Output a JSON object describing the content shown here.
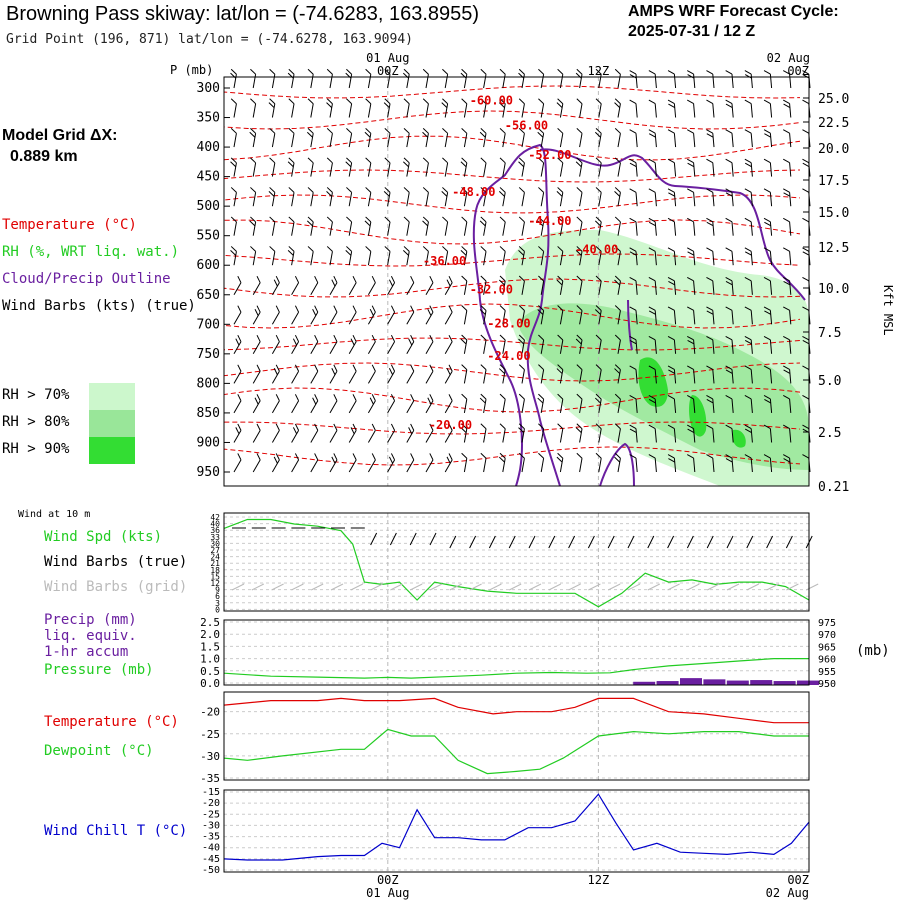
{
  "header": {
    "title": "Browning Pass skiway:  lat/lon = (-74.6283, 163.8955)",
    "subtitle": "Grid Point (196, 871) lat/lon = (-74.6278, 163.9094)",
    "cycle_line1": "AMPS WRF Forecast Cycle:",
    "cycle_line2": "2025-07-31 / 12  Z"
  },
  "model_grid": {
    "line1": "Model Grid ΔX:",
    "line2": "0.889 km"
  },
  "legend": {
    "temperature": "Temperature (°C)",
    "rh": "RH (%, WRT liq. wat.)",
    "cloud": "Cloud/Precip Outline",
    "wind": "Wind Barbs (kts) (true)",
    "rh70": "RH > 70%",
    "rh80": "RH > 80%",
    "rh90": "RH > 90%"
  },
  "colors": {
    "temperature": "#e00000",
    "rh": "#22cc22",
    "cloud": "#6a1fa0",
    "wind": "#000000",
    "wind_grid": "#bbbbbb",
    "windchill": "#0000cc",
    "rh70": "#ccf7cc",
    "rh80": "#99e699",
    "rh90": "#33dd33"
  },
  "time_axis": {
    "top_dates": [
      "01 Aug",
      "",
      "02 Aug"
    ],
    "labels": [
      "00Z",
      "12Z",
      "00Z"
    ],
    "bottom_dates": [
      "01 Aug",
      "",
      "02 Aug"
    ]
  },
  "panel_labels": {
    "wind10m": "Wind at 10 m",
    "wind_spd": "Wind Spd (kts)",
    "wind_barbs_true": "Wind Barbs (true)",
    "wind_barbs_grid": "Wind Barbs (grid)",
    "precip1": "Precip (mm)",
    "precip2": "liq. equiv.",
    "precip3": "1-hr accum",
    "pressure": "Pressure (mb)",
    "pressure_unit": "(mb)",
    "temperature": "Temperature (°C)",
    "dewpoint": "Dewpoint (°C)",
    "windchill": "Wind Chill T (°C)"
  },
  "chart_data": [
    {
      "type": "line",
      "title": "",
      "ylabel": "P (mb)",
      "y2label": "Kft MSL",
      "xlabel": "",
      "y_ticks": [
        300,
        350,
        400,
        450,
        500,
        550,
        600,
        650,
        700,
        750,
        800,
        850,
        900,
        950
      ],
      "y2_ticks": [
        "25.0",
        "22.5",
        "20.0",
        "17.5",
        "15.0",
        "12.5",
        "10.0",
        "7.5",
        "5.0",
        "2.5",
        "0.21"
      ],
      "ylim": [
        300,
        975
      ],
      "temperature_contour_labels": [
        {
          "label": "-60.00",
          "t": 0.42,
          "p": 328
        },
        {
          "label": "-56.00",
          "t": 0.48,
          "p": 370
        },
        {
          "label": "-52.00",
          "t": 0.52,
          "p": 420
        },
        {
          "label": "-48.00",
          "t": 0.39,
          "p": 483
        },
        {
          "label": "-44.00",
          "t": 0.52,
          "p": 532
        },
        {
          "label": "-40.00",
          "t": 0.6,
          "p": 580
        },
        {
          "label": "-36.00",
          "t": 0.34,
          "p": 600
        },
        {
          "label": "-32.00",
          "t": 0.42,
          "p": 648
        },
        {
          "label": "-28.00",
          "t": 0.45,
          "p": 705
        },
        {
          "label": "-24.00",
          "t": 0.45,
          "p": 760
        },
        {
          "label": "-20.00",
          "t": 0.35,
          "p": 877
        }
      ]
    },
    {
      "type": "line",
      "title": "Wind at 10 m",
      "ylabel": "Wind Spd (kts)",
      "y_ticks": [
        42,
        40,
        36,
        33,
        30,
        27,
        24,
        21,
        18,
        15,
        12,
        9,
        6,
        3,
        0
      ],
      "ylim": [
        0,
        42
      ],
      "series": [
        {
          "name": "Wind Spd (kts)",
          "x": [
            0,
            0.04,
            0.08,
            0.12,
            0.16,
            0.2,
            0.22,
            0.24,
            0.27,
            0.3,
            0.33,
            0.36,
            0.4,
            0.45,
            0.5,
            0.55,
            0.6,
            0.64,
            0.68,
            0.72,
            0.76,
            0.8,
            0.84,
            0.88,
            0.92,
            0.96,
            1.0
          ],
          "values": [
            36,
            40,
            40,
            38,
            37,
            35,
            29,
            12,
            11,
            12,
            4,
            12,
            10,
            8,
            7,
            7,
            7,
            1,
            7,
            16,
            12,
            13,
            11,
            12,
            12,
            10,
            4
          ]
        }
      ]
    },
    {
      "type": "line",
      "ylabel": "Precip (mm)",
      "y2label": "Pressure (mb)",
      "y_ticks": [
        "2.5",
        "2.0",
        "1.5",
        "1.0",
        "0.5",
        "0.0"
      ],
      "y2_ticks": [
        975,
        970,
        965,
        960,
        955,
        950
      ],
      "ylim": [
        0,
        2.5
      ],
      "y2lim": [
        950,
        975
      ],
      "series": [
        {
          "name": "Pressure (mb)",
          "x": [
            0,
            0.08,
            0.16,
            0.24,
            0.28,
            0.32,
            0.38,
            0.44,
            0.5,
            0.56,
            0.62,
            0.66,
            0.7,
            0.76,
            0.82,
            0.88,
            0.94,
            1.0
          ],
          "values": [
            954,
            952.8,
            952.4,
            952,
            952.3,
            952,
            952.6,
            953.2,
            954,
            954.3,
            954,
            954.2,
            955.5,
            957,
            958,
            959,
            960,
            960
          ]
        },
        {
          "name": "Precip (mm)",
          "x": [
            0.72,
            0.76,
            0.8,
            0.84,
            0.88,
            0.92,
            0.96,
            1.0
          ],
          "values": [
            0.05,
            0.08,
            0.2,
            0.15,
            0.1,
            0.12,
            0.08,
            0.1
          ]
        }
      ]
    },
    {
      "type": "line",
      "ylabel": "Temperature (°C)",
      "y_ticks": [
        -20,
        -25,
        -30,
        -35
      ],
      "ylim": [
        -35,
        -16
      ],
      "series": [
        {
          "name": "Temperature (°C)",
          "x": [
            0,
            0.08,
            0.16,
            0.2,
            0.24,
            0.3,
            0.36,
            0.4,
            0.46,
            0.5,
            0.56,
            0.6,
            0.64,
            0.7,
            0.76,
            0.82,
            0.88,
            0.94,
            1.0
          ],
          "values": [
            -18.5,
            -17.5,
            -17.5,
            -17,
            -17.5,
            -17.5,
            -17,
            -19,
            -20.5,
            -20,
            -20,
            -19,
            -17,
            -17,
            -20,
            -20.5,
            -21.5,
            -22.5,
            -22.5
          ]
        },
        {
          "name": "Dewpoint (°C)",
          "x": [
            0,
            0.04,
            0.1,
            0.2,
            0.24,
            0.28,
            0.32,
            0.36,
            0.4,
            0.45,
            0.5,
            0.54,
            0.58,
            0.64,
            0.7,
            0.76,
            0.82,
            0.88,
            0.94,
            1.0
          ],
          "values": [
            -30.5,
            -31,
            -30,
            -28.5,
            -28.5,
            -24,
            -25.5,
            -25.5,
            -31,
            -34,
            -33.5,
            -33,
            -30.5,
            -25.5,
            -24.5,
            -25,
            -24.5,
            -24.5,
            -25.5,
            -25.5
          ]
        }
      ]
    },
    {
      "type": "line",
      "ylabel": "Wind Chill T (°C)",
      "y_ticks": [
        -15,
        -20,
        -25,
        -30,
        -35,
        -40,
        -45,
        -50
      ],
      "ylim": [
        -50,
        -15
      ],
      "series": [
        {
          "name": "Wind Chill T (°C)",
          "x": [
            0,
            0.04,
            0.1,
            0.16,
            0.2,
            0.24,
            0.27,
            0.3,
            0.33,
            0.36,
            0.4,
            0.44,
            0.48,
            0.52,
            0.56,
            0.6,
            0.64,
            0.67,
            0.7,
            0.74,
            0.78,
            0.82,
            0.86,
            0.9,
            0.94,
            0.97,
            1.0
          ],
          "values": [
            -45,
            -45.5,
            -45.5,
            -44,
            -43.5,
            -43.5,
            -38,
            -40,
            -23,
            -35.5,
            -35.5,
            -36.5,
            -36.5,
            -31,
            -31,
            -28,
            -16,
            -29,
            -41,
            -38,
            -42,
            -42.5,
            -43,
            -42,
            -43,
            -38,
            -28.5
          ]
        }
      ]
    }
  ]
}
